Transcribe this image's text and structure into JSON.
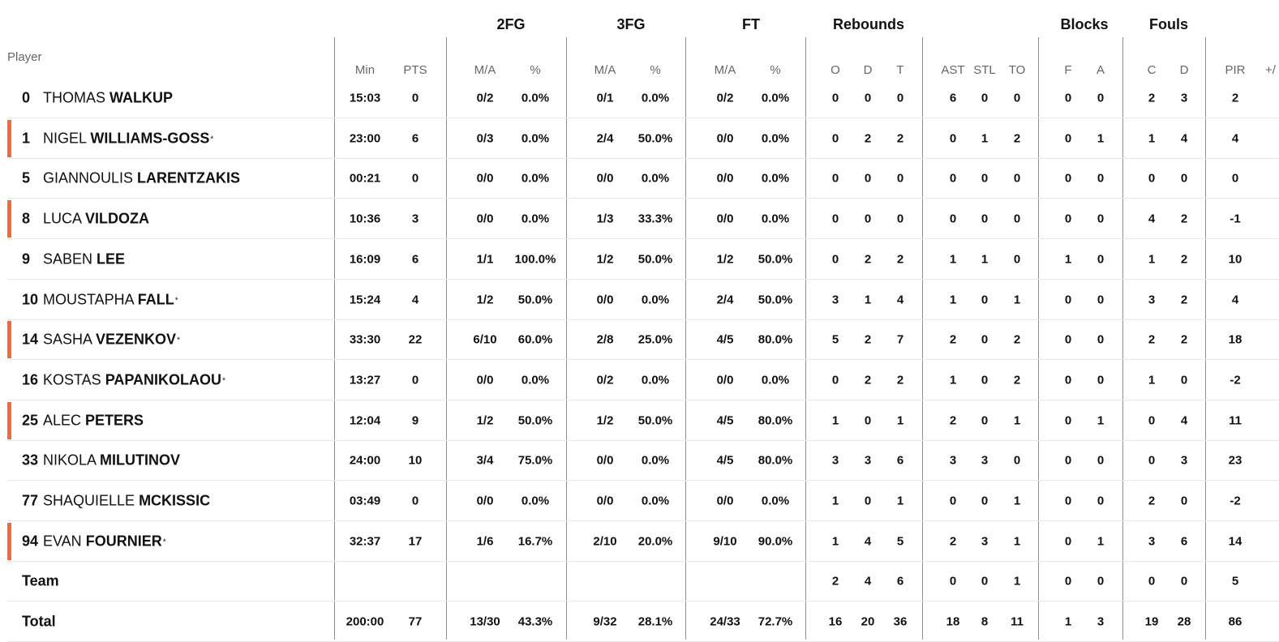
{
  "group_headers": {
    "fg2": "2FG",
    "fg3": "3FG",
    "ft": "FT",
    "rebounds": "Rebounds",
    "blocks": "Blocks",
    "fouls": "Fouls"
  },
  "player_header": "Player",
  "columns": {
    "min": "Min",
    "pts": "PTS",
    "fg2_ma": "M/A",
    "fg2_pct": "%",
    "fg3_ma": "M/A",
    "fg3_pct": "%",
    "ft_ma": "M/A",
    "ft_pct": "%",
    "reb_o": "O",
    "reb_d": "D",
    "reb_t": "T",
    "ast": "AST",
    "stl": "STL",
    "to": "TO",
    "blk_f": "F",
    "blk_a": "A",
    "foul_c": "C",
    "foul_d": "D",
    "pir": "PIR",
    "plusminus": "+/"
  },
  "marker_color": "#f26a3a",
  "rows": [
    {
      "num": "0",
      "first": "THOMAS",
      "last": "WALKUP",
      "star": "",
      "marker": false,
      "min": "15:03",
      "pts": "0",
      "fg2_ma": "0/2",
      "fg2_pct": "0.0%",
      "fg3_ma": "0/1",
      "fg3_pct": "0.0%",
      "ft_ma": "0/2",
      "ft_pct": "0.0%",
      "reb_o": "0",
      "reb_d": "0",
      "reb_t": "0",
      "ast": "6",
      "stl": "0",
      "to": "0",
      "blk_f": "0",
      "blk_a": "0",
      "foul_c": "2",
      "foul_d": "3",
      "pir": "2"
    },
    {
      "num": "1",
      "first": "NIGEL",
      "last": "WILLIAMS-GOSS",
      "star": "*",
      "marker": true,
      "min": "23:00",
      "pts": "6",
      "fg2_ma": "0/3",
      "fg2_pct": "0.0%",
      "fg3_ma": "2/4",
      "fg3_pct": "50.0%",
      "ft_ma": "0/0",
      "ft_pct": "0.0%",
      "reb_o": "0",
      "reb_d": "2",
      "reb_t": "2",
      "ast": "0",
      "stl": "1",
      "to": "2",
      "blk_f": "0",
      "blk_a": "1",
      "foul_c": "1",
      "foul_d": "4",
      "pir": "4"
    },
    {
      "num": "5",
      "first": "GIANNOULIS",
      "last": "LARENTZAKIS",
      "star": "",
      "marker": false,
      "min": "00:21",
      "pts": "0",
      "fg2_ma": "0/0",
      "fg2_pct": "0.0%",
      "fg3_ma": "0/0",
      "fg3_pct": "0.0%",
      "ft_ma": "0/0",
      "ft_pct": "0.0%",
      "reb_o": "0",
      "reb_d": "0",
      "reb_t": "0",
      "ast": "0",
      "stl": "0",
      "to": "0",
      "blk_f": "0",
      "blk_a": "0",
      "foul_c": "0",
      "foul_d": "0",
      "pir": "0"
    },
    {
      "num": "8",
      "first": "LUCA",
      "last": "VILDOZA",
      "star": "",
      "marker": true,
      "min": "10:36",
      "pts": "3",
      "fg2_ma": "0/0",
      "fg2_pct": "0.0%",
      "fg3_ma": "1/3",
      "fg3_pct": "33.3%",
      "ft_ma": "0/0",
      "ft_pct": "0.0%",
      "reb_o": "0",
      "reb_d": "0",
      "reb_t": "0",
      "ast": "0",
      "stl": "0",
      "to": "0",
      "blk_f": "0",
      "blk_a": "0",
      "foul_c": "4",
      "foul_d": "2",
      "pir": "-1"
    },
    {
      "num": "9",
      "first": "SABEN",
      "last": "LEE",
      "star": "",
      "marker": false,
      "min": "16:09",
      "pts": "6",
      "fg2_ma": "1/1",
      "fg2_pct": "100.0%",
      "fg3_ma": "1/2",
      "fg3_pct": "50.0%",
      "ft_ma": "1/2",
      "ft_pct": "50.0%",
      "reb_o": "0",
      "reb_d": "2",
      "reb_t": "2",
      "ast": "1",
      "stl": "1",
      "to": "0",
      "blk_f": "1",
      "blk_a": "0",
      "foul_c": "1",
      "foul_d": "2",
      "pir": "10"
    },
    {
      "num": "10",
      "first": "MOUSTAPHA",
      "last": "FALL",
      "star": "*",
      "marker": false,
      "min": "15:24",
      "pts": "4",
      "fg2_ma": "1/2",
      "fg2_pct": "50.0%",
      "fg3_ma": "0/0",
      "fg3_pct": "0.0%",
      "ft_ma": "2/4",
      "ft_pct": "50.0%",
      "reb_o": "3",
      "reb_d": "1",
      "reb_t": "4",
      "ast": "1",
      "stl": "0",
      "to": "1",
      "blk_f": "0",
      "blk_a": "0",
      "foul_c": "3",
      "foul_d": "2",
      "pir": "4"
    },
    {
      "num": "14",
      "first": "SASHA",
      "last": "VEZENKOV",
      "star": "*",
      "marker": true,
      "min": "33:30",
      "pts": "22",
      "fg2_ma": "6/10",
      "fg2_pct": "60.0%",
      "fg3_ma": "2/8",
      "fg3_pct": "25.0%",
      "ft_ma": "4/5",
      "ft_pct": "80.0%",
      "reb_o": "5",
      "reb_d": "2",
      "reb_t": "7",
      "ast": "2",
      "stl": "0",
      "to": "2",
      "blk_f": "0",
      "blk_a": "0",
      "foul_c": "2",
      "foul_d": "2",
      "pir": "18"
    },
    {
      "num": "16",
      "first": "KOSTAS",
      "last": "PAPANIKOLAOU",
      "star": "*",
      "marker": false,
      "min": "13:27",
      "pts": "0",
      "fg2_ma": "0/0",
      "fg2_pct": "0.0%",
      "fg3_ma": "0/2",
      "fg3_pct": "0.0%",
      "ft_ma": "0/0",
      "ft_pct": "0.0%",
      "reb_o": "0",
      "reb_d": "2",
      "reb_t": "2",
      "ast": "1",
      "stl": "0",
      "to": "2",
      "blk_f": "0",
      "blk_a": "0",
      "foul_c": "1",
      "foul_d": "0",
      "pir": "-2"
    },
    {
      "num": "25",
      "first": "ALEC",
      "last": "PETERS",
      "star": "",
      "marker": true,
      "min": "12:04",
      "pts": "9",
      "fg2_ma": "1/2",
      "fg2_pct": "50.0%",
      "fg3_ma": "1/2",
      "fg3_pct": "50.0%",
      "ft_ma": "4/5",
      "ft_pct": "80.0%",
      "reb_o": "1",
      "reb_d": "0",
      "reb_t": "1",
      "ast": "2",
      "stl": "0",
      "to": "1",
      "blk_f": "0",
      "blk_a": "1",
      "foul_c": "0",
      "foul_d": "4",
      "pir": "11"
    },
    {
      "num": "33",
      "first": "NIKOLA",
      "last": "MILUTINOV",
      "star": "",
      "marker": false,
      "min": "24:00",
      "pts": "10",
      "fg2_ma": "3/4",
      "fg2_pct": "75.0%",
      "fg3_ma": "0/0",
      "fg3_pct": "0.0%",
      "ft_ma": "4/5",
      "ft_pct": "80.0%",
      "reb_o": "3",
      "reb_d": "3",
      "reb_t": "6",
      "ast": "3",
      "stl": "3",
      "to": "0",
      "blk_f": "0",
      "blk_a": "0",
      "foul_c": "0",
      "foul_d": "3",
      "pir": "23"
    },
    {
      "num": "77",
      "first": "SHAQUIELLE",
      "last": "MCKISSIC",
      "star": "",
      "marker": false,
      "min": "03:49",
      "pts": "0",
      "fg2_ma": "0/0",
      "fg2_pct": "0.0%",
      "fg3_ma": "0/0",
      "fg3_pct": "0.0%",
      "ft_ma": "0/0",
      "ft_pct": "0.0%",
      "reb_o": "1",
      "reb_d": "0",
      "reb_t": "1",
      "ast": "0",
      "stl": "0",
      "to": "1",
      "blk_f": "0",
      "blk_a": "0",
      "foul_c": "2",
      "foul_d": "0",
      "pir": "-2"
    },
    {
      "num": "94",
      "first": "EVAN",
      "last": "FOURNIER",
      "star": "*",
      "marker": true,
      "min": "32:37",
      "pts": "17",
      "fg2_ma": "1/6",
      "fg2_pct": "16.7%",
      "fg3_ma": "2/10",
      "fg3_pct": "20.0%",
      "ft_ma": "9/10",
      "ft_pct": "90.0%",
      "reb_o": "1",
      "reb_d": "4",
      "reb_t": "5",
      "ast": "2",
      "stl": "3",
      "to": "1",
      "blk_f": "0",
      "blk_a": "1",
      "foul_c": "3",
      "foul_d": "6",
      "pir": "14"
    },
    {
      "label": "Team",
      "marker": false,
      "min": "",
      "pts": "",
      "fg2_ma": "",
      "fg2_pct": "",
      "fg3_ma": "",
      "fg3_pct": "",
      "ft_ma": "",
      "ft_pct": "",
      "reb_o": "2",
      "reb_d": "4",
      "reb_t": "6",
      "ast": "0",
      "stl": "0",
      "to": "1",
      "blk_f": "0",
      "blk_a": "0",
      "foul_c": "0",
      "foul_d": "0",
      "pir": "5"
    },
    {
      "label": "Total",
      "marker": false,
      "min": "200:00",
      "pts": "77",
      "fg2_ma": "13/30",
      "fg2_pct": "43.3%",
      "fg3_ma": "9/32",
      "fg3_pct": "28.1%",
      "ft_ma": "24/33",
      "ft_pct": "72.7%",
      "reb_o": "16",
      "reb_d": "20",
      "reb_t": "36",
      "ast": "18",
      "stl": "8",
      "to": "11",
      "blk_f": "1",
      "blk_a": "3",
      "foul_c": "19",
      "foul_d": "28",
      "pir": "86"
    }
  ]
}
